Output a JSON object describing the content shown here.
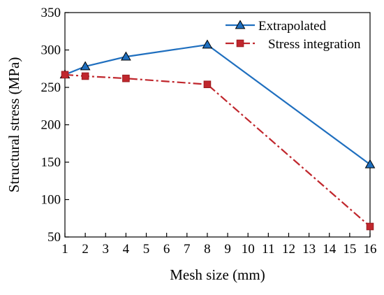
{
  "chart_data": {
    "type": "line",
    "title": "",
    "xlabel": "Mesh size (mm)",
    "ylabel": "Structural stress (MPa)",
    "x_ticks": [
      "1",
      "2",
      "3",
      "4",
      "5",
      "6",
      "7",
      "8",
      "9",
      "10",
      "11",
      "12",
      "13",
      "14",
      "15",
      "16"
    ],
    "y_ticks": [
      "50",
      "100",
      "150",
      "200",
      "250",
      "300",
      "350"
    ],
    "xlim": [
      1,
      16
    ],
    "ylim": [
      50,
      350
    ],
    "grid": false,
    "legend_position": "top-right",
    "series": [
      {
        "name": "Extrapolated",
        "color": "#1f6fbf",
        "marker": "triangle",
        "line_style": "solid",
        "x": [
          1,
          2,
          4,
          8,
          16
        ],
        "y": [
          267,
          278,
          291,
          307,
          147
        ]
      },
      {
        "name": "Stress integration",
        "color": "#c0272d",
        "marker": "square",
        "line_style": "dash-dot",
        "x": [
          1,
          2,
          4,
          8,
          16
        ],
        "y": [
          267,
          265,
          262,
          254,
          64
        ]
      }
    ]
  }
}
